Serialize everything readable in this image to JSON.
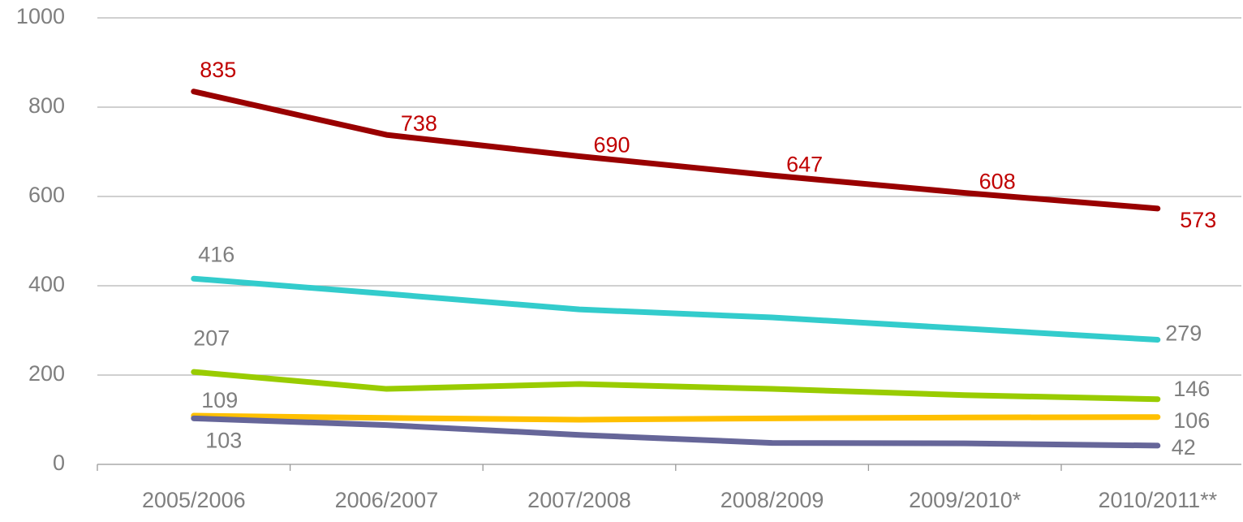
{
  "chart_data": {
    "type": "line",
    "categories": [
      "2005/2006",
      "2006/2007",
      "2007/2008",
      "2008/2009",
      "2009/2010*",
      "2010/2011**"
    ],
    "ylim": [
      0,
      1000
    ],
    "yticks": [
      0,
      200,
      400,
      600,
      800,
      1000
    ],
    "grid": true,
    "series": [
      {
        "color": "#990000",
        "label_color": "#c00000",
        "labeled_points": [
          0,
          1,
          2,
          3,
          4,
          5
        ],
        "values": [
          835,
          738,
          690,
          647,
          608,
          573
        ]
      },
      {
        "color": "#33cccc",
        "label_color": "#7f7f7f",
        "labeled_points": [
          0,
          5
        ],
        "values": [
          416,
          382,
          347,
          329,
          304,
          279
        ]
      },
      {
        "color": "#99cc00",
        "label_color": "#7f7f7f",
        "labeled_points": [
          0,
          5
        ],
        "values": [
          207,
          169,
          180,
          169,
          155,
          146
        ]
      },
      {
        "color": "#ffc000",
        "label_color": "#7f7f7f",
        "labeled_points": [
          0,
          5
        ],
        "values": [
          109,
          104,
          100,
          103,
          105,
          106
        ]
      },
      {
        "color": "#666699",
        "label_color": "#7f7f7f",
        "labeled_points": [
          0,
          5
        ],
        "values": [
          103,
          88,
          66,
          48,
          47,
          42
        ]
      }
    ]
  }
}
